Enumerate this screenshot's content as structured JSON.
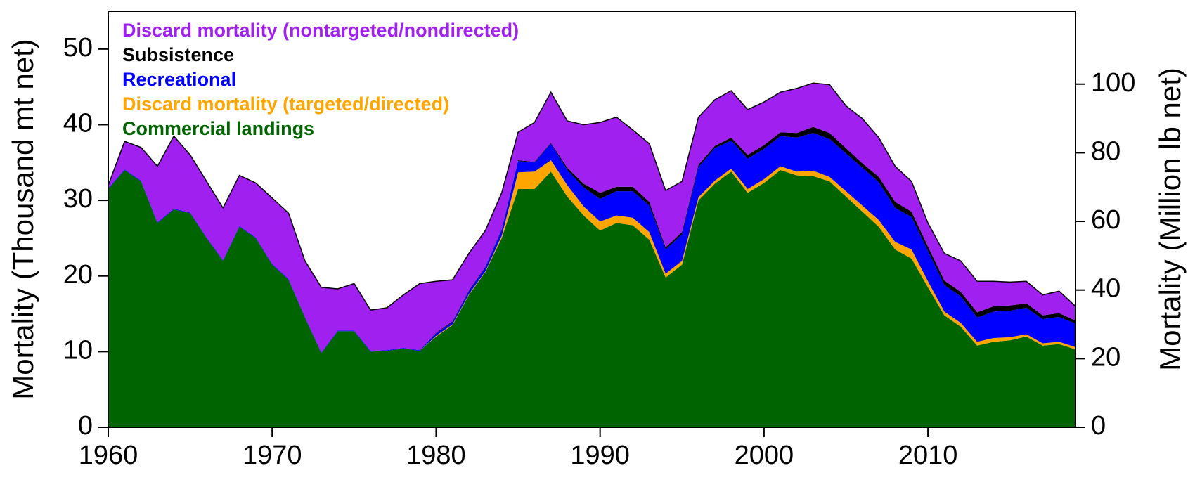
{
  "chart_data": {
    "type": "stacked_area",
    "ylabel": "Mortality (Thousand mt net)",
    "y2label": "Mortality (Million lb net)",
    "x": [
      1960,
      1961,
      1962,
      1963,
      1964,
      1965,
      1966,
      1967,
      1968,
      1969,
      1970,
      1971,
      1972,
      1973,
      1974,
      1975,
      1976,
      1977,
      1978,
      1979,
      1980,
      1981,
      1982,
      1983,
      1984,
      1985,
      1986,
      1987,
      1988,
      1989,
      1990,
      1991,
      1992,
      1993,
      1994,
      1995,
      1996,
      1997,
      1998,
      1999,
      2000,
      2001,
      2002,
      2003,
      2004,
      2005,
      2006,
      2007,
      2008,
      2009,
      2010,
      2011,
      2012,
      2013,
      2014,
      2015,
      2016,
      2017,
      2018,
      2019
    ],
    "series": [
      {
        "name": "Commercial landings",
        "color": "#006400",
        "values": [
          31.5,
          34,
          32.5,
          27,
          28.8,
          28.3,
          25,
          22,
          26.5,
          25,
          21.5,
          19.5,
          14.5,
          9.8,
          12.7,
          12.7,
          10,
          10.1,
          10.4,
          10.1,
          12,
          13.5,
          17.5,
          20.5,
          25,
          31.5,
          31.5,
          33.8,
          30.5,
          28,
          26,
          27,
          26.7,
          24.8,
          19.8,
          21.5,
          30,
          32.2,
          33.8,
          31,
          32.3,
          34,
          33.3,
          33.2,
          32.5,
          30.5,
          28.5,
          26.5,
          23.5,
          22.3,
          18.5,
          14.8,
          13.3,
          10.8,
          11.3,
          11.5,
          12,
          10.8,
          11,
          10.3
        ]
      },
      {
        "name": "Discard mortality (targeted/directed)",
        "color": "#ffa500",
        "values": [
          0,
          0,
          0,
          0,
          0,
          0,
          0,
          0,
          0,
          0,
          0,
          0,
          0,
          0,
          0,
          0,
          0,
          0,
          0,
          0,
          0.1,
          0.1,
          0.1,
          0.1,
          0.3,
          2.2,
          2.3,
          1.5,
          1.5,
          1.2,
          1.2,
          1,
          1,
          1,
          0.5,
          0.5,
          0.4,
          0.4,
          0.4,
          0.5,
          0.5,
          0.5,
          0.5,
          0.7,
          0.6,
          0.7,
          0.8,
          0.9,
          1,
          1.2,
          0.8,
          0.5,
          0.5,
          0.5,
          0.5,
          0.4,
          0.3,
          0.3,
          0.3,
          0.3
        ]
      },
      {
        "name": "Recreational",
        "color": "#0000ff",
        "values": [
          0.1,
          0.1,
          0.1,
          0.1,
          0.1,
          0.1,
          0.1,
          0.1,
          0.1,
          0.1,
          0.1,
          0.1,
          0.1,
          0.1,
          0.1,
          0.1,
          0.1,
          0.1,
          0.1,
          0.1,
          0.3,
          0.3,
          0.4,
          0.5,
          0.8,
          1.5,
          1.2,
          2.2,
          2,
          2.5,
          3,
          3.2,
          3.5,
          3.5,
          3.2,
          3.5,
          4,
          4.3,
          3.7,
          4,
          4,
          4,
          4.5,
          5,
          5,
          5,
          5,
          5,
          4.5,
          4.3,
          4,
          3.5,
          3.5,
          3.2,
          3.5,
          3.5,
          3.5,
          3.2,
          3.3,
          3.1
        ]
      },
      {
        "name": "Subsistence",
        "color": "#000000",
        "values": [
          0,
          0,
          0,
          0,
          0,
          0,
          0,
          0,
          0,
          0,
          0,
          0,
          0,
          0,
          0,
          0,
          0,
          0,
          0,
          0,
          0.1,
          0.1,
          0.1,
          0.1,
          0.1,
          0.1,
          0.1,
          0.1,
          0.3,
          0.5,
          0.8,
          0.6,
          0.6,
          0.5,
          0.3,
          0.3,
          0.3,
          0.3,
          0.4,
          0.5,
          0.5,
          0.5,
          0.6,
          0.8,
          0.8,
          0.7,
          0.6,
          0.7,
          0.8,
          0.7,
          0.6,
          0.6,
          0.6,
          0.7,
          0.7,
          0.7,
          0.6,
          0.5,
          0.5,
          0.4
        ]
      },
      {
        "name": "Discard mortality (nontargeted/nondirected)",
        "color": "#a020f0",
        "values": [
          0.4,
          3.7,
          4.4,
          7.4,
          9.6,
          7.6,
          7.4,
          6.9,
          6.7,
          7.2,
          8.7,
          8.7,
          7.4,
          8.6,
          5.5,
          6.2,
          5.4,
          5.6,
          7,
          8.8,
          6.8,
          5.5,
          4.9,
          4.8,
          4.8,
          3.7,
          5.2,
          6.7,
          6.2,
          7.8,
          9.3,
          9.2,
          7.5,
          7.7,
          7.5,
          6.7,
          6.3,
          6.1,
          6.2,
          6,
          5.7,
          5.3,
          5.9,
          5.8,
          6.4,
          5.6,
          5.9,
          5.2,
          4.7,
          4,
          3.1,
          3.6,
          4.1,
          4.1,
          3.3,
          3.1,
          2.9,
          2.7,
          2.9,
          1.9
        ]
      }
    ],
    "xlim": [
      1960,
      2019
    ],
    "xticks": [
      1960,
      1970,
      1980,
      1990,
      2000,
      2010
    ],
    "ylim": [
      0,
      55
    ],
    "yticks": [
      0,
      10,
      20,
      30,
      40,
      50
    ],
    "y2lim": [
      0,
      121.25
    ],
    "y2ticks": [
      0,
      20,
      40,
      60,
      80,
      100
    ],
    "legend": "upper left"
  }
}
